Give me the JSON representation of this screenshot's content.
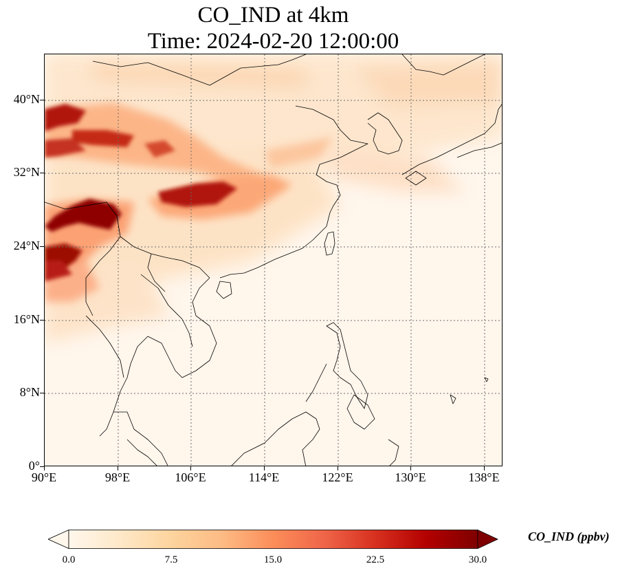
{
  "title_line1": "CO_IND at 4km",
  "title_line2": "Time: 2024-02-20 12:00:00",
  "latitude_ticks": [
    "40°N",
    "32°N",
    "24°N",
    "16°N",
    "8°N",
    "0°"
  ],
  "longitude_ticks": [
    "90°E",
    "98°E",
    "106°E",
    "114°E",
    "122°E",
    "130°E",
    "138°E"
  ],
  "colorbar": {
    "label": "CO_IND (ppbv)",
    "ticks": [
      "0.0",
      "7.5",
      "15.0",
      "22.5",
      "30.0"
    ],
    "min": 0,
    "max": 30,
    "extend": "both",
    "colormap": [
      "#fff7ec",
      "#fee8c8",
      "#fdd49e",
      "#fdbb84",
      "#fc8d59",
      "#ef6548",
      "#d7301f",
      "#b30000",
      "#7f0000"
    ]
  },
  "map": {
    "lon_range": [
      90,
      140
    ],
    "lat_range": [
      0,
      45
    ],
    "gridlines": "dotted",
    "background_color": "#fff6ec",
    "coastline_color": "#000000"
  }
}
